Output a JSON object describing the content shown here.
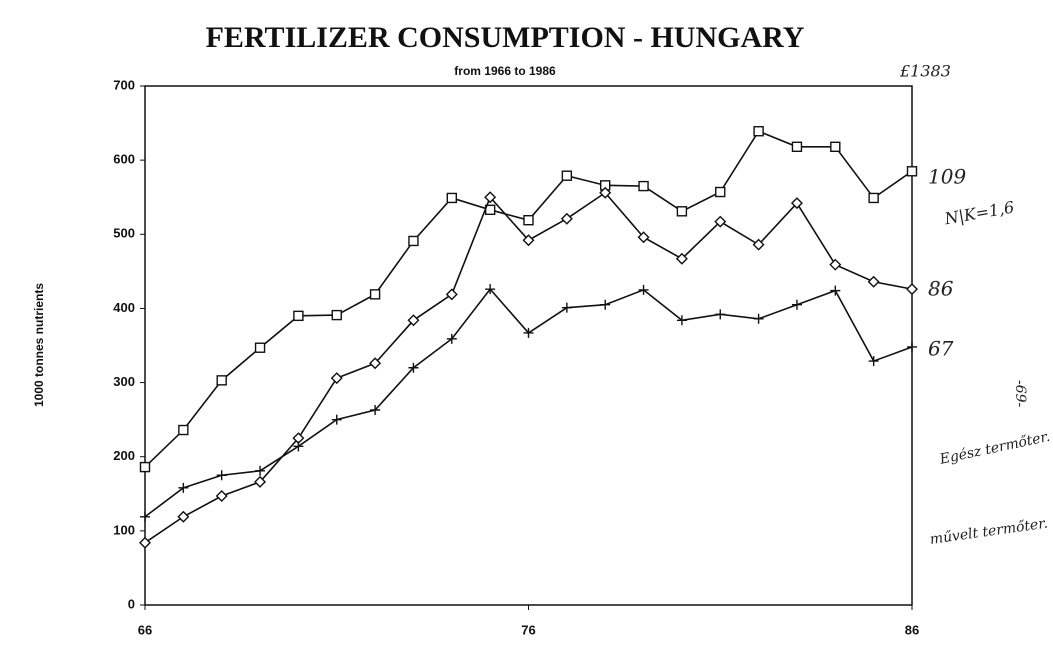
{
  "chart_data": {
    "type": "line",
    "title": "FERTILIZER CONSUMPTION  -  HUNGARY",
    "subtitle": "from 1966 to 1986",
    "y_label": "1000 tonnes nutrients",
    "x": [
      66,
      67,
      68,
      69,
      70,
      71,
      72,
      73,
      74,
      75,
      76,
      77,
      78,
      79,
      80,
      81,
      82,
      83,
      84,
      85,
      86
    ],
    "xlim": [
      66,
      86
    ],
    "xticks": [
      66,
      76,
      86
    ],
    "ylim": [
      0,
      700
    ],
    "yticks": [
      0,
      100,
      200,
      300,
      400,
      500,
      600,
      700
    ],
    "series": [
      {
        "marker": "square",
        "color": "#111",
        "values": [
          186,
          236,
          303,
          347,
          390,
          391,
          419,
          491,
          549,
          533,
          519,
          579,
          566,
          565,
          531,
          557,
          639,
          618,
          618,
          549,
          585
        ]
      },
      {
        "marker": "diamond",
        "color": "#111",
        "values": [
          84,
          119,
          147,
          166,
          225,
          306,
          326,
          384,
          419,
          550,
          492,
          521,
          556,
          496,
          467,
          517,
          486,
          542,
          459,
          436,
          426
        ]
      },
      {
        "marker": "plus",
        "color": "#111",
        "values": [
          119,
          158,
          175,
          181,
          214,
          250,
          263,
          320,
          359,
          426,
          367,
          401,
          405,
          425,
          384,
          392,
          386,
          405,
          424,
          329,
          348
        ]
      }
    ],
    "annotations": [
      "109",
      "86",
      "67",
      "N|K=1,6",
      "£1383",
      "-69-",
      "Egész termőter.",
      "művelt termőter."
    ]
  }
}
